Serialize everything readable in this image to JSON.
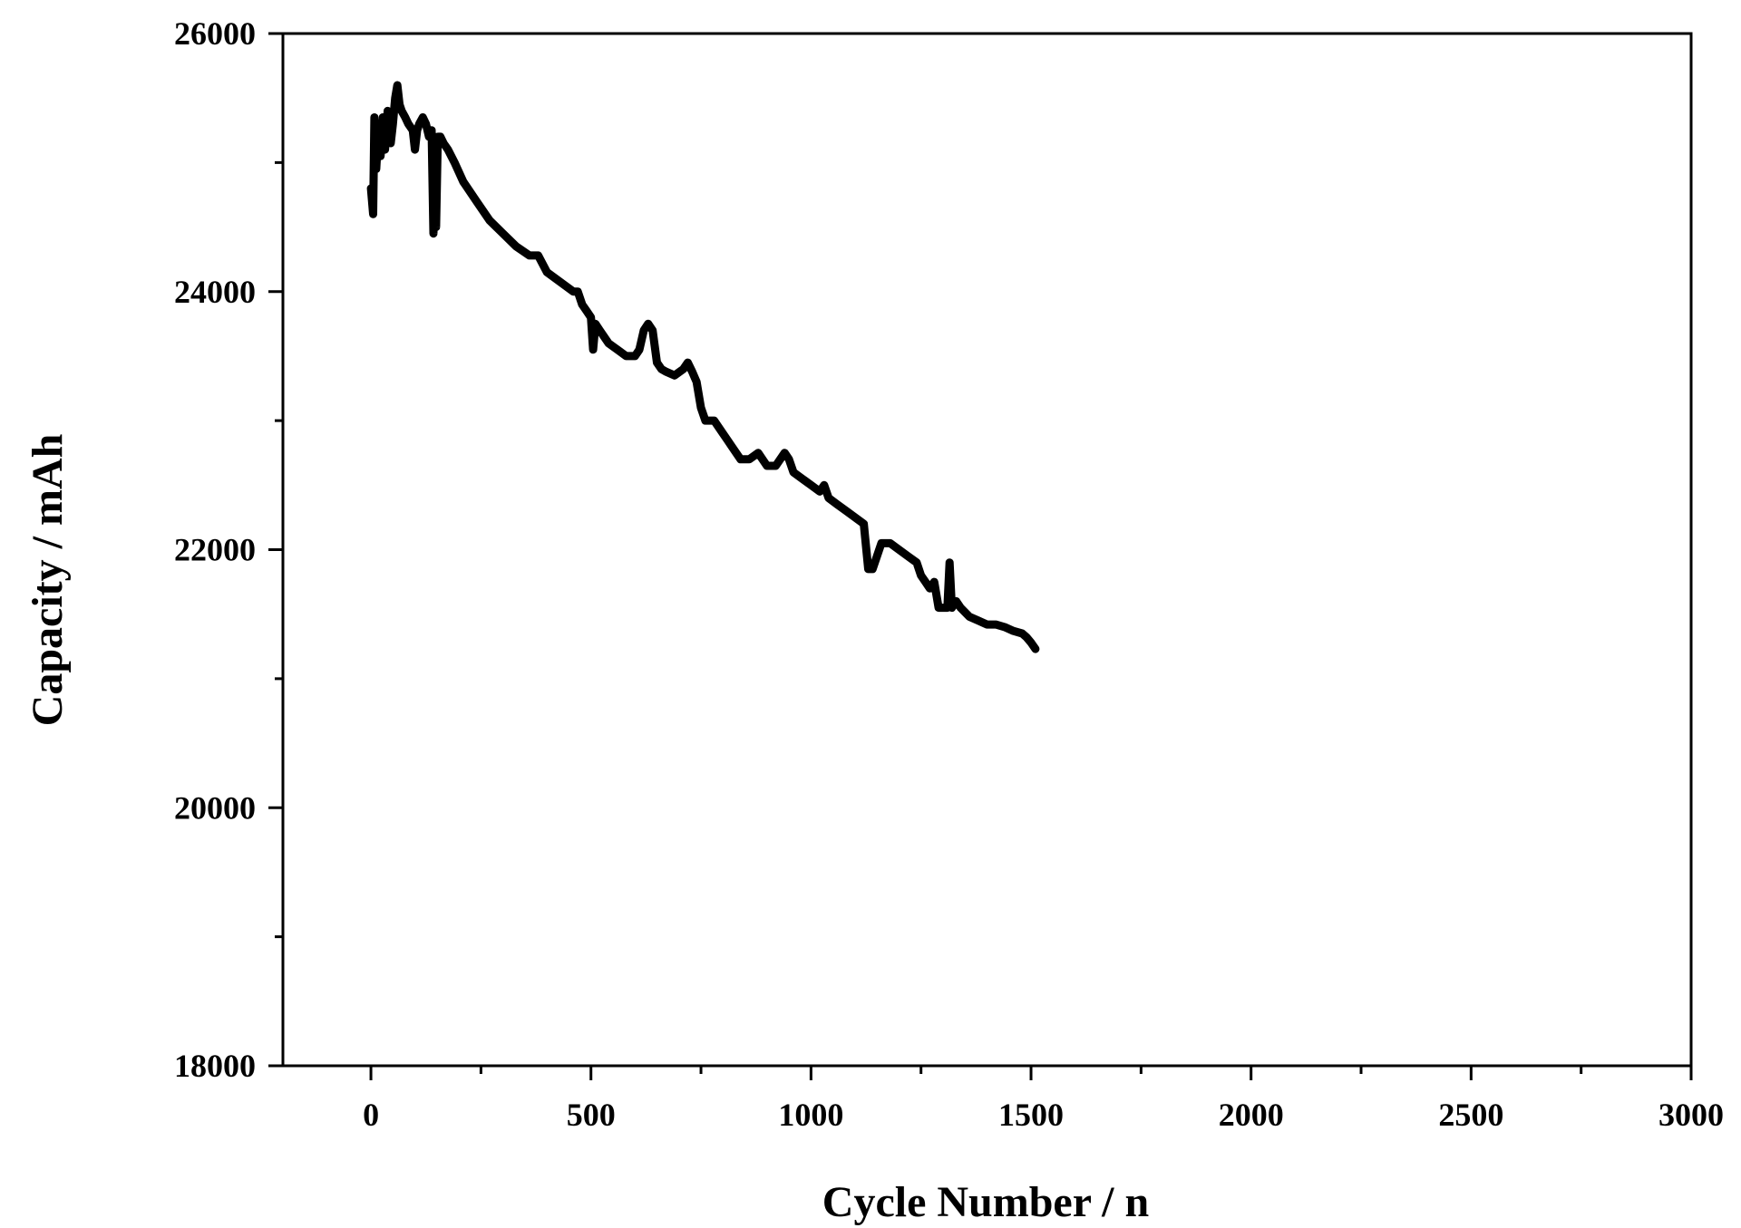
{
  "chart_data": {
    "type": "line",
    "title": "",
    "xlabel": "Cycle Number / n",
    "ylabel": "Capacity / mAh",
    "xlim": [
      -200,
      3000
    ],
    "ylim": [
      18000,
      26000
    ],
    "x_ticks": [
      0,
      500,
      1000,
      1500,
      2000,
      2500,
      3000
    ],
    "x_tick_labels": [
      "0",
      "500",
      "1000",
      "1500",
      "2000",
      "2500",
      "3000"
    ],
    "y_ticks": [
      18000,
      20000,
      22000,
      24000,
      26000
    ],
    "y_tick_labels": [
      "18000",
      "20000",
      "22000",
      "24000",
      "26000"
    ],
    "grid": false,
    "legend": "none",
    "line_color": "#000000",
    "series": [
      {
        "x": [
          0,
          5,
          8,
          12,
          18,
          22,
          27,
          32,
          38,
          45,
          50,
          55,
          60,
          65,
          70,
          78,
          85,
          95,
          100,
          105,
          110,
          118,
          125,
          132,
          138,
          142,
          145,
          148,
          152,
          158,
          165,
          175,
          190,
          210,
          240,
          270,
          300,
          330,
          360,
          380,
          400,
          420,
          440,
          460,
          470,
          480,
          490,
          500,
          505,
          510,
          520,
          540,
          560,
          580,
          600,
          610,
          620,
          630,
          640,
          650,
          660,
          670,
          690,
          710,
          720,
          730,
          740,
          750,
          760,
          780,
          800,
          810,
          820,
          840,
          860,
          880,
          900,
          920,
          940,
          950,
          960,
          980,
          1000,
          1020,
          1030,
          1040,
          1060,
          1080,
          1100,
          1120,
          1130,
          1140,
          1150,
          1160,
          1170,
          1180,
          1200,
          1220,
          1240,
          1250,
          1260,
          1270,
          1280,
          1290,
          1300,
          1310,
          1315,
          1320,
          1330,
          1340,
          1360,
          1380,
          1400,
          1420,
          1440,
          1460,
          1480,
          1490,
          1500,
          1510
        ],
        "y": [
          24800,
          24600,
          25350,
          24950,
          25300,
          25050,
          25350,
          25100,
          25400,
          25150,
          25300,
          25500,
          25600,
          25450,
          25400,
          25350,
          25300,
          25250,
          25100,
          25250,
          25300,
          25350,
          25300,
          25200,
          25250,
          24450,
          25200,
          24500,
          25200,
          25200,
          25150,
          25100,
          25000,
          24850,
          24700,
          24550,
          24450,
          24350,
          24280,
          24280,
          24150,
          24100,
          24050,
          24000,
          24000,
          23900,
          23850,
          23800,
          23550,
          23750,
          23700,
          23600,
          23550,
          23500,
          23500,
          23550,
          23700,
          23750,
          23700,
          23450,
          23400,
          23380,
          23350,
          23400,
          23450,
          23380,
          23300,
          23100,
          23000,
          23000,
          22900,
          22850,
          22800,
          22700,
          22700,
          22750,
          22650,
          22650,
          22750,
          22700,
          22600,
          22550,
          22500,
          22450,
          22500,
          22400,
          22350,
          22300,
          22250,
          22200,
          21850,
          21850,
          21950,
          22050,
          22050,
          22050,
          22000,
          21950,
          21900,
          21800,
          21750,
          21700,
          21750,
          21550,
          21550,
          21550,
          21900,
          21550,
          21600,
          21550,
          21480,
          21450,
          21420,
          21420,
          21400,
          21370,
          21350,
          21320,
          21280,
          21230
        ]
      }
    ]
  }
}
